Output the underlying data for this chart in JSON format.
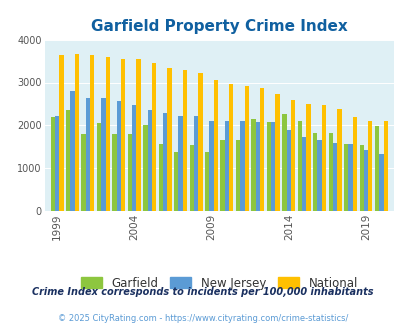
{
  "title": "Garfield Property Crime Index",
  "title_color": "#1060A0",
  "years": [
    1999,
    2000,
    2001,
    2002,
    2003,
    2004,
    2005,
    2006,
    2007,
    2008,
    2009,
    2010,
    2011,
    2012,
    2013,
    2014,
    2015,
    2016,
    2017,
    2018,
    2019,
    2020
  ],
  "garfield": [
    2200,
    2350,
    1800,
    2050,
    1800,
    1800,
    2000,
    1570,
    1380,
    1550,
    1380,
    1650,
    1660,
    2150,
    2070,
    2270,
    2100,
    1820,
    1830,
    1570,
    1550,
    1980
  ],
  "new_jersey": [
    2220,
    2800,
    2650,
    2650,
    2560,
    2480,
    2370,
    2300,
    2220,
    2230,
    2100,
    2100,
    2100,
    2080,
    2080,
    1900,
    1720,
    1650,
    1600,
    1570,
    1430,
    1340
  ],
  "national": [
    3640,
    3660,
    3650,
    3600,
    3540,
    3540,
    3450,
    3340,
    3290,
    3220,
    3050,
    2960,
    2920,
    2880,
    2740,
    2600,
    2490,
    2470,
    2390,
    2200,
    2100,
    2100
  ],
  "garfield_color": "#8DC63F",
  "nj_color": "#5B9BD5",
  "national_color": "#FFC000",
  "bg_color": "#FFFFFF",
  "plot_bg_color": "#DFF0F5",
  "subtitle": "Crime Index corresponds to incidents per 100,000 inhabitants",
  "subtitle_color": "#1A3060",
  "footer": "© 2025 CityRating.com - https://www.cityrating.com/crime-statistics/",
  "footer_color": "#5B9BD5",
  "ylim": [
    0,
    4000
  ],
  "yticks": [
    0,
    1000,
    2000,
    3000,
    4000
  ],
  "xtick_labels": [
    "1999",
    "2004",
    "2009",
    "2014",
    "2019"
  ],
  "xtick_positions": [
    1999,
    2004,
    2009,
    2014,
    2019
  ],
  "legend_labels": [
    "Garfield",
    "New Jersey",
    "National"
  ]
}
